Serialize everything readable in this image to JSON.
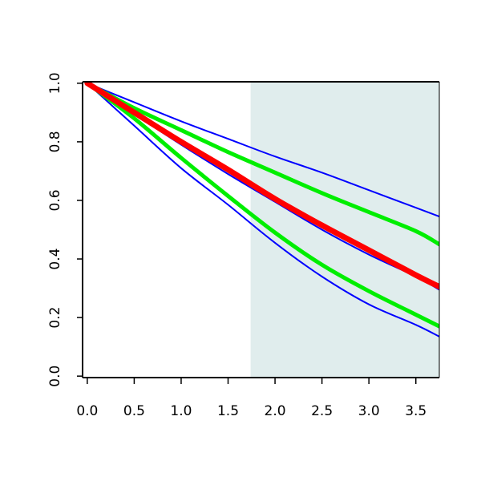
{
  "chart_data": {
    "type": "line",
    "title": "",
    "xlabel": "",
    "ylabel": "",
    "xlim": [
      -0.05,
      3.75
    ],
    "ylim": [
      -0.005,
      1.005
    ],
    "xticks": [
      "0.0",
      "0.5",
      "1.0",
      "1.5",
      "2.0",
      "2.5",
      "3.0",
      "3.5"
    ],
    "yticks": [
      "0.0",
      "0.2",
      "0.4",
      "0.6",
      "0.8",
      "1.0"
    ],
    "grid": false,
    "legend": "none",
    "shaded_region": {
      "x_start": 1.74,
      "x_end": 3.75,
      "color": "#e0eded"
    },
    "series": [
      {
        "color": "#0000ff",
        "width": "thin",
        "x": [
          0,
          0.5,
          1.0,
          1.5,
          2.0,
          2.5,
          3.0,
          3.5,
          3.75
        ],
        "y": [
          1.0,
          0.855,
          0.71,
          0.585,
          0.455,
          0.34,
          0.245,
          0.175,
          0.135
        ]
      },
      {
        "color": "#00ee00",
        "width": "thick",
        "x": [
          0,
          0.5,
          1.0,
          1.5,
          2.0,
          2.5,
          3.0,
          3.5,
          3.75
        ],
        "y": [
          1.0,
          0.88,
          0.745,
          0.615,
          0.49,
          0.38,
          0.29,
          0.21,
          0.17
        ]
      },
      {
        "color": "#ff0000",
        "width": "thickest",
        "x": [
          0,
          0.5,
          1.0,
          1.5,
          2.0,
          2.5,
          3.0,
          3.5,
          3.75
        ],
        "y": [
          1.0,
          0.9,
          0.8,
          0.705,
          0.605,
          0.515,
          0.43,
          0.345,
          0.305
        ]
      },
      {
        "color": "#0000ff",
        "width": "thin",
        "x": [
          0,
          0.5,
          1.0,
          1.5,
          2.0,
          2.5,
          3.0,
          3.5,
          3.75
        ],
        "y": [
          1.0,
          0.895,
          0.79,
          0.69,
          0.595,
          0.5,
          0.415,
          0.34,
          0.295
        ]
      },
      {
        "color": "#00ee00",
        "width": "thick",
        "x": [
          0,
          0.5,
          1.0,
          1.5,
          2.0,
          2.5,
          3.0,
          3.5,
          3.75
        ],
        "y": [
          1.0,
          0.915,
          0.84,
          0.765,
          0.695,
          0.625,
          0.56,
          0.495,
          0.45
        ]
      },
      {
        "color": "#0000ff",
        "width": "thin",
        "x": [
          0,
          0.5,
          1.0,
          1.5,
          2.0,
          2.5,
          3.0,
          3.5,
          3.75
        ],
        "y": [
          1.0,
          0.935,
          0.87,
          0.81,
          0.75,
          0.695,
          0.635,
          0.575,
          0.545
        ]
      }
    ]
  }
}
